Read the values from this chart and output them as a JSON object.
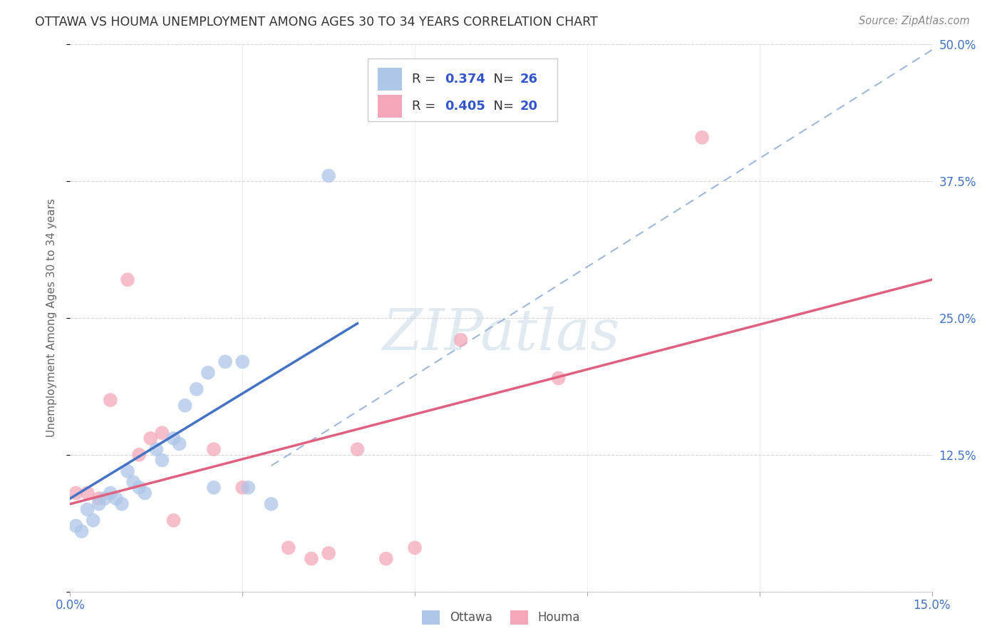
{
  "title": "OTTAWA VS HOUMA UNEMPLOYMENT AMONG AGES 30 TO 34 YEARS CORRELATION CHART",
  "source": "Source: ZipAtlas.com",
  "ylabel": "Unemployment Among Ages 30 to 34 years",
  "xlim": [
    0.0,
    0.15
  ],
  "ylim": [
    0.0,
    0.5
  ],
  "xticks": [
    0.0,
    0.03,
    0.06,
    0.09,
    0.12,
    0.15
  ],
  "xtick_labels": [
    "0.0%",
    "",
    "",
    "",
    "",
    "15.0%"
  ],
  "yticks": [
    0.0,
    0.125,
    0.25,
    0.375,
    0.5
  ],
  "ytick_labels": [
    "",
    "12.5%",
    "25.0%",
    "37.5%",
    "50.0%"
  ],
  "ottawa_color": "#aec6e8",
  "houma_color": "#f4a7b9",
  "ottawa_line_color": "#4472c4",
  "houma_line_color": "#e06080",
  "dash_line_color": "#a0b8d8",
  "legend_r_color": "#3355cc",
  "background_color": "#ffffff",
  "grid_color": "#cccccc",
  "watermark_text": "ZIPatlas",
  "watermark_color": "#d0dce8",
  "legend_ottawa_r": "0.374",
  "legend_ottawa_n": "26",
  "legend_houma_r": "0.405",
  "legend_houma_n": "20",
  "ottawa_x": [
    0.001,
    0.002,
    0.003,
    0.004,
    0.005,
    0.006,
    0.007,
    0.008,
    0.009,
    0.01,
    0.011,
    0.012,
    0.013,
    0.015,
    0.016,
    0.018,
    0.019,
    0.02,
    0.022,
    0.024,
    0.025,
    0.027,
    0.03,
    0.031,
    0.035,
    0.045
  ],
  "ottawa_y": [
    0.06,
    0.055,
    0.075,
    0.065,
    0.08,
    0.085,
    0.09,
    0.085,
    0.08,
    0.11,
    0.1,
    0.095,
    0.09,
    0.13,
    0.12,
    0.14,
    0.135,
    0.17,
    0.185,
    0.2,
    0.095,
    0.21,
    0.21,
    0.095,
    0.08,
    0.38
  ],
  "houma_x": [
    0.001,
    0.003,
    0.005,
    0.007,
    0.01,
    0.012,
    0.014,
    0.016,
    0.018,
    0.025,
    0.03,
    0.038,
    0.042,
    0.045,
    0.05,
    0.055,
    0.06,
    0.068,
    0.085,
    0.11
  ],
  "houma_y": [
    0.09,
    0.09,
    0.085,
    0.175,
    0.285,
    0.125,
    0.14,
    0.145,
    0.065,
    0.13,
    0.095,
    0.04,
    0.03,
    0.035,
    0.13,
    0.03,
    0.04,
    0.23,
    0.195,
    0.415
  ],
  "ottawa_line_x0": 0.0,
  "ottawa_line_y0": 0.085,
  "ottawa_line_x1": 0.05,
  "ottawa_line_y1": 0.245,
  "houma_line_x0": 0.0,
  "houma_line_y0": 0.08,
  "houma_line_x1": 0.15,
  "houma_line_y1": 0.285,
  "dash_line_x0": 0.035,
  "dash_line_y0": 0.115,
  "dash_line_x1": 0.15,
  "dash_line_y1": 0.495
}
